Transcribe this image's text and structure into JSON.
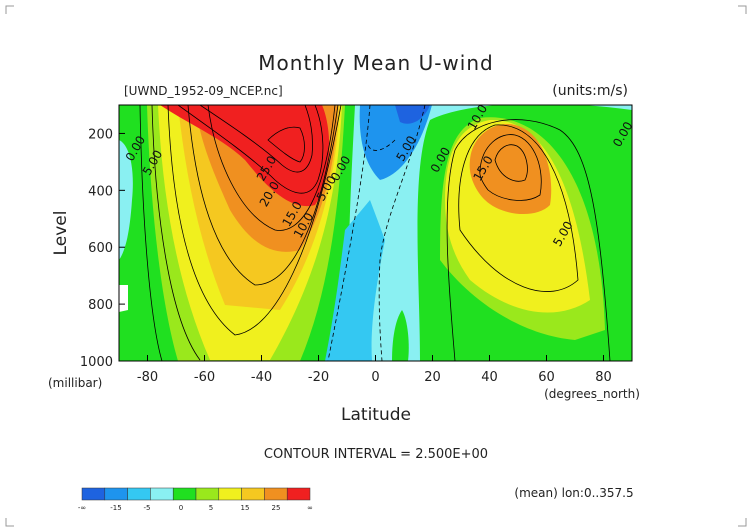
{
  "chart_data": {
    "type": "contour",
    "title": "Monthly Mean U-wind",
    "subtitle_left": "[UWND_1952-09_NCEP.nc]",
    "subtitle_right": "(units:m/s)",
    "xlabel": "Latitude",
    "xunit": "(degrees_north)",
    "ylabel": "Level",
    "yunit": "(millibar)",
    "xlim": [
      -90,
      90
    ],
    "ylim": [
      1000,
      100
    ],
    "x_ticks": [
      -80,
      -60,
      -40,
      -20,
      0,
      20,
      40,
      60,
      80
    ],
    "y_ticks": [
      200,
      400,
      600,
      800,
      1000
    ],
    "contour_interval_text": "CONTOUR INTERVAL = 2.500E+00",
    "footnote": "(mean) lon:0..357.5",
    "contour_labels": [
      {
        "text": "0.00",
        "lat": -83,
        "lev": 260
      },
      {
        "text": "5.00",
        "lat": -77,
        "lev": 310
      },
      {
        "text": "25.0",
        "lat": -37,
        "lev": 330
      },
      {
        "text": "20.0",
        "lat": -36,
        "lev": 420
      },
      {
        "text": "15.0",
        "lat": -28,
        "lev": 490
      },
      {
        "text": "10.0",
        "lat": -24,
        "lev": 530
      },
      {
        "text": "5.00",
        "lat": -16,
        "lev": 400
      },
      {
        "text": "0.00",
        "lat": -11,
        "lev": 330
      },
      {
        "text": "5.00",
        "lat": 12,
        "lev": 260
      },
      {
        "text": "0.00",
        "lat": 24,
        "lev": 300
      },
      {
        "text": "10.0",
        "lat": 37,
        "lev": 150
      },
      {
        "text": "15.0",
        "lat": 39,
        "lev": 330
      },
      {
        "text": "5.00",
        "lat": 67,
        "lev": 560
      },
      {
        "text": "0.00",
        "lat": 88,
        "lev": 210
      }
    ],
    "colorbar": {
      "colors": [
        "#1e63e0",
        "#1e94ee",
        "#34c8f2",
        "#8af0f2",
        "#20e020",
        "#9ae81c",
        "#f0f01e",
        "#f5c820",
        "#f09020",
        "#f02020"
      ],
      "labels": [
        "-∞",
        "-15",
        "-5",
        "0",
        "5",
        "15",
        "25",
        "∞"
      ]
    }
  }
}
